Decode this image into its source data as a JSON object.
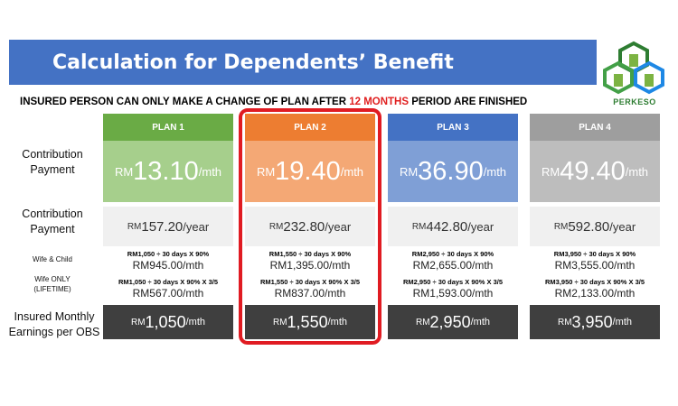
{
  "header": {
    "title": "Calculation for Dependents’ Benefit"
  },
  "logo": {
    "text": "PERKESO",
    "color": "#2e7d32"
  },
  "notice": {
    "before": "INSURED PERSON CAN ONLY MAKE A CHANGE OF PLAN AFTER ",
    "highlight": "12 MONTHS",
    "after": " PERIOD ARE FINISHED"
  },
  "row_labels": {
    "contribution_monthly": "Contribution Payment",
    "contribution_yearly": "Contribution Payment",
    "wife_child": "Wife & Child",
    "wife_only": "Wife ONLY (LIFETIME)",
    "earnings": "Insured Monthly Earnings per OBS"
  },
  "currency": "RM",
  "units": {
    "month": "/mth",
    "year": "/year"
  },
  "plans": [
    {
      "name": "PLAN 1",
      "head_color": "#6aab45",
      "box_color": "#a6cf8c",
      "monthly": "13.10",
      "yearly": "157.20",
      "wife_child_formula": "RM1,050 ÷ 30 days X 90%",
      "wife_child_result": "RM945.00/mth",
      "wife_only_formula": "RM1,050 ÷ 30 days X 90% X 3/5",
      "wife_only_result": "RM567.00/mth",
      "earnings": "1,050"
    },
    {
      "name": "PLAN 2",
      "head_color": "#ed7d31",
      "box_color": "#f4a875",
      "monthly": "19.40",
      "yearly": "232.80",
      "wife_child_formula": "RM1,550 ÷ 30 days X 90%",
      "wife_child_result": "RM1,395.00/mth",
      "wife_only_formula": "RM1,550 ÷ 30 days X 90% X 3/5",
      "wife_only_result": "RM837.00/mth",
      "earnings": "1,550"
    },
    {
      "name": "PLAN 3",
      "head_color": "#4472c4",
      "box_color": "#7f9fd6",
      "monthly": "36.90",
      "yearly": "442.80",
      "wife_child_formula": "RM2,950 ÷ 30 days X 90%",
      "wife_child_result": "RM2,655.00/mth",
      "wife_only_formula": "RM2,950 ÷ 30 days X 90% X 3/5",
      "wife_only_result": "RM1,593.00/mth",
      "earnings": "2,950"
    },
    {
      "name": "PLAN 4",
      "head_color": "#9e9e9e",
      "box_color": "#bdbdbd",
      "monthly": "49.40",
      "yearly": "592.80",
      "wife_child_formula": "RM3,950 ÷ 30 days X 90%",
      "wife_child_result": "RM3,555.00/mth",
      "wife_only_formula": "RM3,950 ÷ 30 days X 90% X 3/5",
      "wife_only_result": "RM2,133.00/mth",
      "earnings": "3,950"
    }
  ],
  "highlight_plan_color": "#e01b22"
}
